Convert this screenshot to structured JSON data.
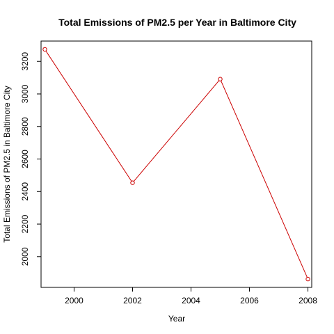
{
  "chart_data": {
    "type": "line",
    "title": "Total Emissions of PM2.5 per Year in Baltimore City",
    "xlabel": "Year",
    "ylabel": "Total Emissions of PM2.5 in Baltimore City",
    "x": [
      1999,
      2002,
      2005,
      2008
    ],
    "series": [
      {
        "values": [
          3274,
          2454,
          3091,
          1862
        ],
        "color": "#cc0000",
        "markers": "open-circle"
      }
    ],
    "xlim": [
      1998.87,
      2008.13
    ],
    "ylim": [
      1811,
      3325
    ],
    "x_ticks": [
      2000,
      2002,
      2004,
      2006,
      2008
    ],
    "y_ticks": [
      2000,
      2200,
      2400,
      2600,
      2800,
      3000,
      3200
    ],
    "x_tick_labels": [
      "2000",
      "2002",
      "2004",
      "2006",
      "2008"
    ],
    "y_tick_labels": [
      "2000",
      "2200",
      "2400",
      "2600",
      "2800",
      "3000",
      "3200"
    ],
    "grid": false,
    "legend": "none"
  }
}
